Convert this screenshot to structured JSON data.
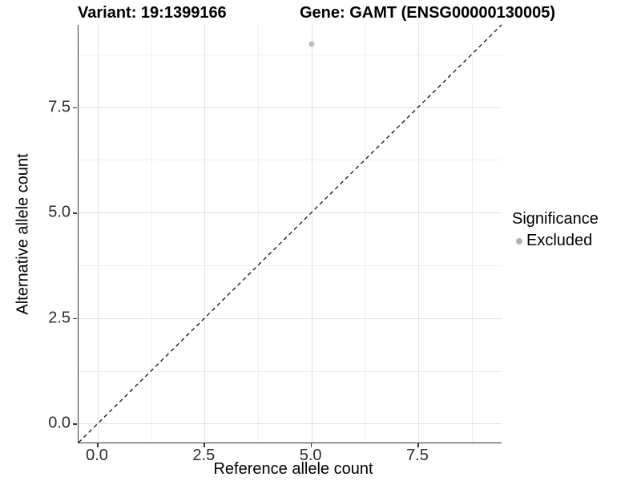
{
  "title": {
    "variant_label": "Variant: 19:1399166",
    "gene_label": "Gene: GAMT (ENSG00000130005)"
  },
  "chart_data": {
    "type": "scatter",
    "title": "Variant: 19:1399166   Gene: GAMT (ENSG00000130005)",
    "xlabel": "Reference allele count",
    "ylabel": "Alternative allele count",
    "xlim": [
      -0.45,
      9.45
    ],
    "ylim": [
      -0.45,
      9.45
    ],
    "xticks": [
      {
        "value": 0,
        "label": "0.0"
      },
      {
        "value": 2.5,
        "label": "2.5"
      },
      {
        "value": 5,
        "label": "5.0"
      },
      {
        "value": 7.5,
        "label": "7.5"
      }
    ],
    "yticks": [
      {
        "value": 0,
        "label": "0.0"
      },
      {
        "value": 2.5,
        "label": "2.5"
      },
      {
        "value": 5,
        "label": "5.0"
      },
      {
        "value": 7.5,
        "label": "7.5"
      }
    ],
    "minor_xticks": [
      1.25,
      3.75,
      6.25,
      8.75
    ],
    "minor_yticks": [
      1.25,
      3.75,
      6.25,
      8.75
    ],
    "grid": "major and minor, light gray on white",
    "points": [
      {
        "x": 5,
        "y": 9,
        "series": "Excluded",
        "color": "#bdbdbd"
      }
    ],
    "reference_line": {
      "type": "identity y=x",
      "style": "dashed",
      "color": "#111111"
    },
    "legend": {
      "title": "Significance",
      "position": "right",
      "items": [
        {
          "label": "Excluded",
          "marker": "circle",
          "color": "#b3b3b3"
        }
      ]
    }
  },
  "colors": {
    "background": "#ffffff",
    "major_grid": "#e3e3e3",
    "minor_grid": "#efefef",
    "axis_line": "#333333",
    "tick_text": "#2e2e2e",
    "point": "#bdbdbd",
    "legend_marker": "#b3b3b3",
    "dashed_line": "#111111"
  }
}
